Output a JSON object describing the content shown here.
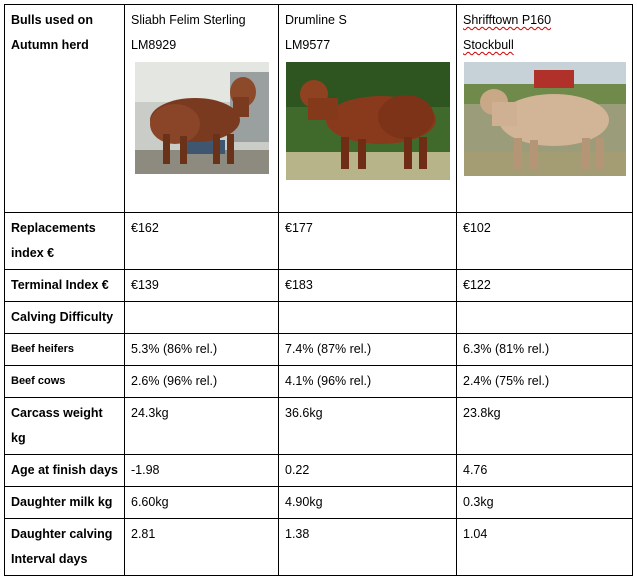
{
  "header": {
    "label_line1": "Bulls used on",
    "label_line2": "Autumn herd"
  },
  "bulls": [
    {
      "name_line1": "Sliabh Felim Sterling",
      "name_line2": "LM8929"
    },
    {
      "name_line1": "Drumline S",
      "name_line2": "LM9577"
    },
    {
      "name_line1": "Shrifftown P160",
      "name_line2": "Stockbull"
    }
  ],
  "rows": {
    "replacements": {
      "label_line1": "Replacements",
      "label_line2": "index €",
      "values": [
        "€162",
        "€177",
        "€102"
      ]
    },
    "terminal": {
      "label": "Terminal Index €",
      "values": [
        "€139",
        "€183",
        "€122"
      ]
    },
    "calving": {
      "label": "Calving Difficulty"
    },
    "beef_heifers": {
      "label": "Beef heifers",
      "values": [
        "5.3% (86% rel.)",
        "7.4% (87% rel.)",
        "6.3% (81% rel.)"
      ]
    },
    "beef_cows": {
      "label": "Beef cows",
      "values": [
        "2.6% (96% rel.)",
        "4.1% (96% rel.)",
        "2.4% (75% rel.)"
      ]
    },
    "carcass": {
      "label": "Carcass weight kg",
      "values": [
        "24.3kg",
        "36.6kg",
        "23.8kg"
      ]
    },
    "age_finish": {
      "label": "Age at finish days",
      "values": [
        "-1.98",
        "0.22",
        "4.76"
      ]
    },
    "milk": {
      "label": "Daughter milk kg",
      "values": [
        "6.60kg",
        "4.90kg",
        "0.3kg"
      ]
    },
    "calving_interval": {
      "label_line1": "Daughter calving",
      "label_line2": "Interval days",
      "values": [
        "2.81",
        "1.38",
        "1.04"
      ]
    }
  },
  "photo_icons": [
    "bull-photo-sterling",
    "bull-photo-drumline",
    "bull-photo-shrifftown"
  ]
}
